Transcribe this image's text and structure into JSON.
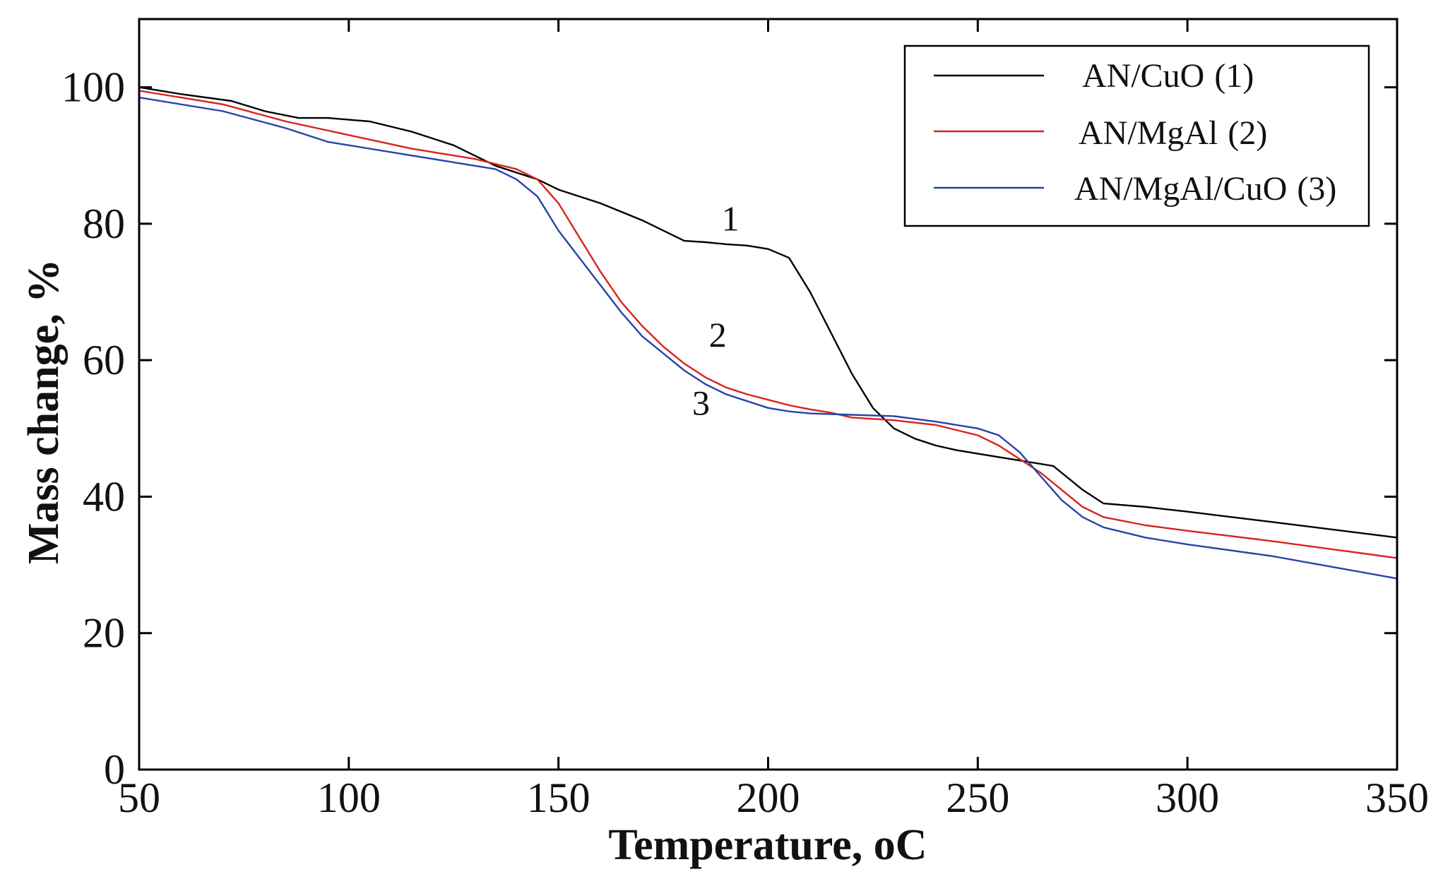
{
  "chart_data": {
    "type": "line",
    "title": "",
    "xlabel": "Temperature, ",
    "xlabel_unit": "oC",
    "ylabel": "Mass change, %",
    "xlim": [
      50,
      350
    ],
    "ylim": [
      0,
      110
    ],
    "xticks": [
      50,
      100,
      150,
      200,
      250,
      300,
      350
    ],
    "yticks": [
      0,
      20,
      40,
      60,
      80,
      100
    ],
    "grid": false,
    "legend_position": "top-right",
    "series": [
      {
        "name": "AN/CuO (1)",
        "legend_main": "AN/CuO",
        "legend_num": "(1)",
        "color": "#000000",
        "curve_label": "1",
        "curve_label_at": [
          191,
          79
        ],
        "x": [
          50,
          60,
          72,
          80,
          88,
          95,
          105,
          115,
          125,
          135,
          145,
          150,
          160,
          170,
          175,
          180,
          185,
          190,
          195,
          200,
          205,
          210,
          215,
          220,
          225,
          230,
          235,
          240,
          245,
          250,
          255,
          260,
          268,
          275,
          280,
          290,
          300,
          320,
          350
        ],
        "values": [
          100,
          99,
          98,
          96.5,
          95.5,
          95.5,
          95,
          93.5,
          91.5,
          88.5,
          86.5,
          85,
          83,
          80.5,
          79,
          77.5,
          77.3,
          77,
          76.8,
          76.3,
          75,
          70,
          64,
          58,
          53,
          50,
          48.5,
          47.5,
          46.8,
          46.3,
          45.8,
          45.3,
          44.5,
          41,
          39,
          38.5,
          37.8,
          36.3,
          34
        ]
      },
      {
        "name": "AN/MgAl (2)",
        "legend_main": "AN/MgAl",
        "legend_num": "(2)",
        "color": "#d7241d",
        "curve_label": "2",
        "curve_label_at": [
          188,
          62
        ],
        "x": [
          50,
          70,
          85,
          100,
          115,
          130,
          140,
          145,
          150,
          155,
          160,
          165,
          170,
          175,
          180,
          185,
          190,
          195,
          200,
          205,
          210,
          215,
          220,
          230,
          240,
          250,
          255,
          260,
          265,
          270,
          275,
          280,
          290,
          300,
          320,
          350
        ],
        "values": [
          99.5,
          97.5,
          95,
          93,
          91,
          89.5,
          88,
          86.5,
          83,
          78,
          73,
          68.5,
          65,
          62,
          59.5,
          57.5,
          56,
          55,
          54.2,
          53.4,
          52.8,
          52.3,
          51.6,
          51.2,
          50.5,
          49,
          47.5,
          45.5,
          43.5,
          41,
          38.5,
          37,
          35.8,
          35,
          33.5,
          31
        ]
      },
      {
        "name": "AN/MgAl/CuO (3)",
        "legend_main": "AN/MgAl/CuO",
        "legend_num": "(3)",
        "color": "#2743a8",
        "curve_label": "3",
        "curve_label_at": [
          184,
          52
        ],
        "x": [
          50,
          70,
          85,
          95,
          110,
          125,
          135,
          140,
          145,
          150,
          155,
          160,
          165,
          170,
          175,
          180,
          185,
          190,
          200,
          205,
          210,
          220,
          230,
          240,
          250,
          255,
          260,
          265,
          270,
          275,
          280,
          290,
          300,
          320,
          350
        ],
        "values": [
          98.5,
          96.5,
          94,
          92,
          90.5,
          89,
          88,
          86.5,
          84,
          79,
          75,
          71,
          67,
          63.5,
          61,
          58.5,
          56.5,
          55,
          53,
          52.5,
          52.2,
          52,
          51.8,
          51,
          50,
          49,
          46.5,
          43,
          39.5,
          37,
          35.5,
          34,
          33,
          31.3,
          28
        ]
      }
    ]
  }
}
